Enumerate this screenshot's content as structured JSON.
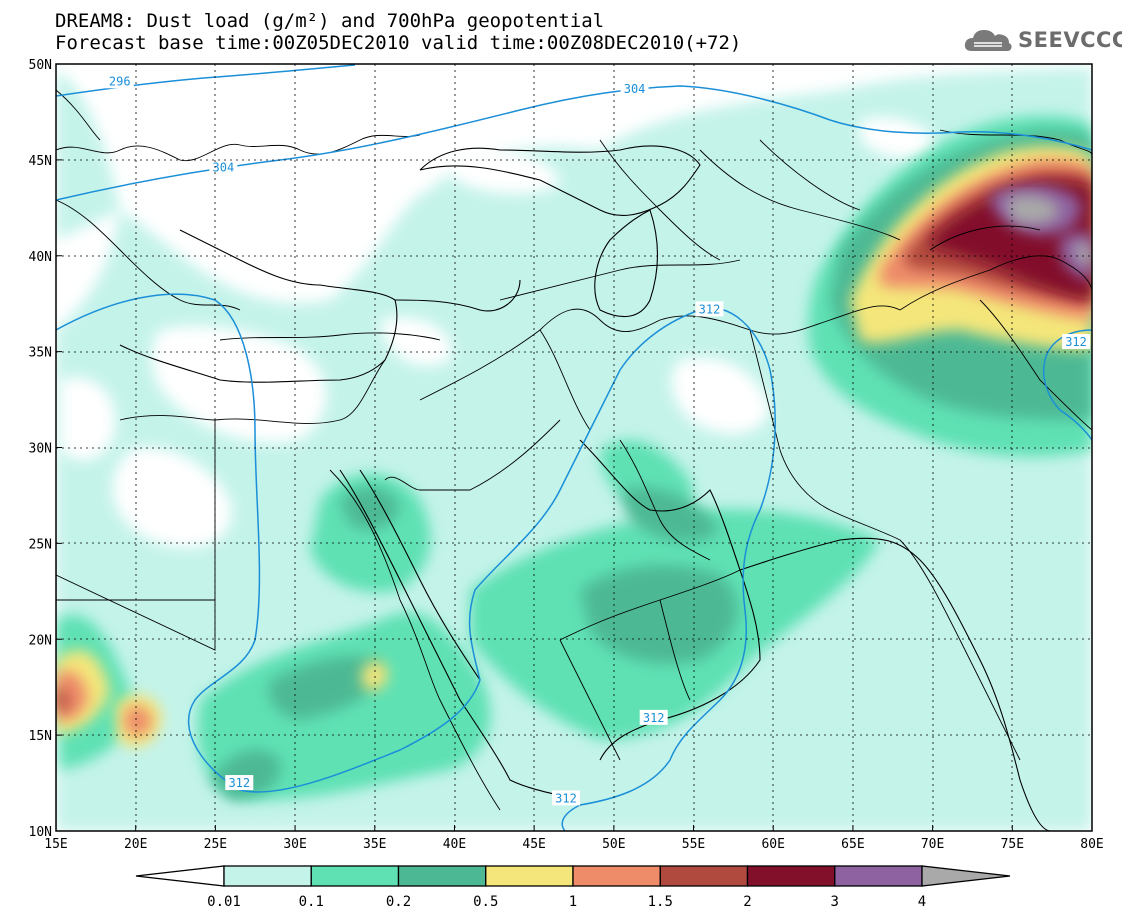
{
  "title": {
    "line1": "DREAM8: Dust load (g/m²) and 700hPa geopotential",
    "line2": "Forecast base time:00Z05DEC2010 valid time:00Z08DEC2010(+72)"
  },
  "logo": {
    "text": "SEEVCCC",
    "icon": "cloud-icon"
  },
  "map": {
    "lon_range": [
      15,
      80
    ],
    "lat_range": [
      10,
      50
    ],
    "x_ticks": [
      "15E",
      "20E",
      "25E",
      "30E",
      "35E",
      "40E",
      "45E",
      "50E",
      "55E",
      "60E",
      "65E",
      "70E",
      "75E",
      "80E"
    ],
    "y_ticks": [
      "10N",
      "15N",
      "20N",
      "25N",
      "30N",
      "35N",
      "40N",
      "45N",
      "50N"
    ],
    "grid": "dotted",
    "contour_color": "#1a8fd8",
    "contour_labels": [
      {
        "text": "296",
        "lon": 19.0,
        "lat": 49.1
      },
      {
        "text": "304",
        "lon": 25.5,
        "lat": 44.6
      },
      {
        "text": "304",
        "lon": 51.3,
        "lat": 48.7
      },
      {
        "text": "312",
        "lon": 56.0,
        "lat": 37.2
      },
      {
        "text": "312",
        "lon": 79.0,
        "lat": 35.5
      },
      {
        "text": "312",
        "lon": 52.5,
        "lat": 15.9
      },
      {
        "text": "312",
        "lon": 26.5,
        "lat": 12.5
      },
      {
        "text": "312",
        "lon": 47.0,
        "lat": 11.7
      }
    ]
  },
  "colorbar": {
    "labels": [
      "0.01",
      "0.1",
      "0.2",
      "0.5",
      "1",
      "1.5",
      "2",
      "3",
      "4"
    ],
    "colors": [
      "#c4f3ea",
      "#5fe1b4",
      "#4db994",
      "#f4e67a",
      "#ee8c6a",
      "#b04a3e",
      "#82102a",
      "#8e62a0",
      "#a9a9a9"
    ]
  }
}
